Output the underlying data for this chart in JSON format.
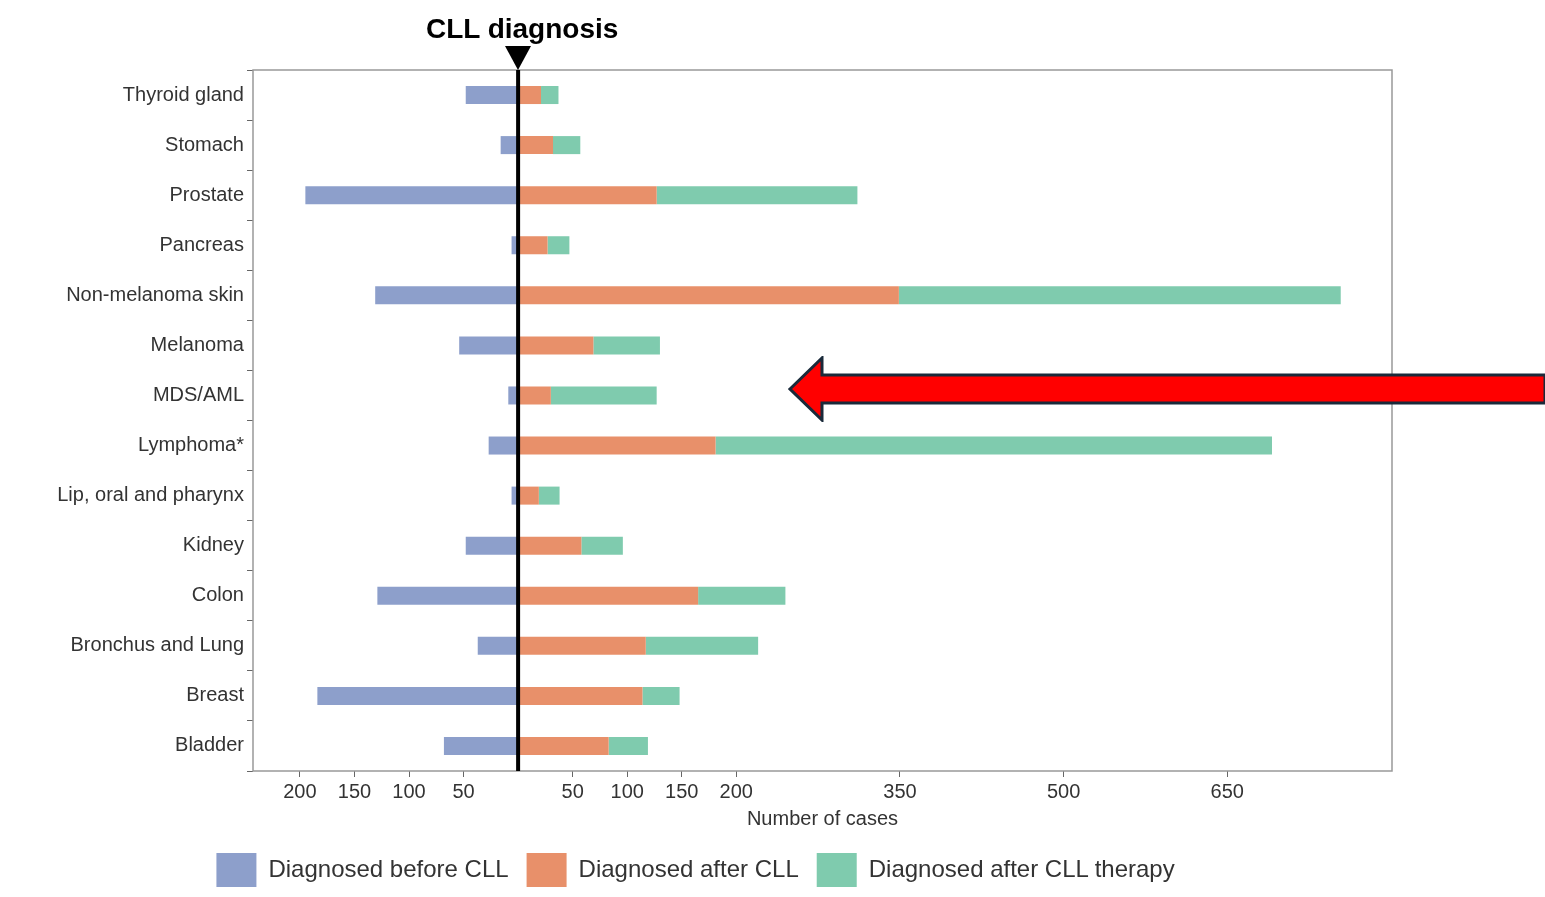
{
  "chart_data": {
    "type": "bar",
    "orientation": "horizontal",
    "stacked": true,
    "categories": [
      "Thyroid gland",
      "Stomach",
      "Prostate",
      "Pancreas",
      "Non-melanoma skin",
      "Melanoma",
      "MDS/AML",
      "Lymphoma*",
      "Lip, oral and pharynx",
      "Kidney",
      "Colon",
      "Bronchus and Lung",
      "Breast",
      "Bladder"
    ],
    "series": [
      {
        "name": "Diagnosed before CLL",
        "color": "#8d9fcb",
        "values": [
          -48,
          -16,
          -195,
          -6,
          -131,
          -54,
          -9,
          -27,
          -6,
          -48,
          -129,
          -37,
          -184,
          -68
        ]
      },
      {
        "name": "Diagnosed after CLL",
        "color": "#e8906a",
        "values": [
          21,
          32,
          127,
          27,
          349,
          69,
          30,
          181,
          19,
          58,
          165,
          117,
          114,
          83
        ]
      },
      {
        "name": "Diagnosed after CLL therapy",
        "color": "#7fcbae",
        "values": [
          16,
          25,
          184,
          20,
          405,
          61,
          97,
          510,
          19,
          38,
          80,
          103,
          34,
          36
        ]
      }
    ],
    "xlabel": "Number of cases",
    "xlim": [
      -243,
      801
    ],
    "xticks": [
      {
        "value": -200,
        "label": "200"
      },
      {
        "value": -150,
        "label": "150"
      },
      {
        "value": -100,
        "label": "100"
      },
      {
        "value": -50,
        "label": "50"
      },
      50,
      100,
      150,
      200,
      350,
      500,
      650
    ],
    "ref_lines": [
      {
        "axis": "x",
        "value": 0,
        "label": "CLL diagnosis",
        "color": "#000000"
      }
    ],
    "grid": false,
    "legend": "bottom"
  }
}
